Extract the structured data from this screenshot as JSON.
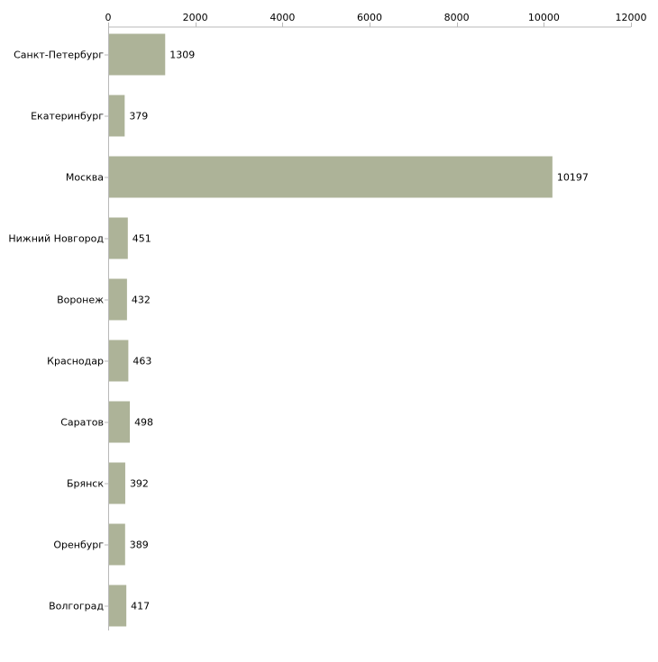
{
  "chart_data": {
    "type": "bar",
    "orientation": "horizontal",
    "title": "",
    "xlabel": "",
    "ylabel": "",
    "xlim": [
      0,
      12000
    ],
    "x_ticks": [
      0,
      2000,
      4000,
      6000,
      8000,
      10000,
      12000
    ],
    "x_tick_labels": [
      "0",
      "2000",
      "4000",
      "6000",
      "8000",
      "10000",
      "12000"
    ],
    "x_axis_position": "top",
    "grid": false,
    "legend": "none",
    "categories": [
      "Санкт-Петербург",
      "Екатеринбург",
      "Москва",
      "Нижний Новгород",
      "Воронеж",
      "Краснодар",
      "Саратов",
      "Брянск",
      "Оренбург",
      "Волгоград"
    ],
    "values": [
      1309,
      379,
      10197,
      451,
      432,
      463,
      498,
      392,
      389,
      417
    ],
    "value_labels": [
      "1309",
      "379",
      "10197",
      "451",
      "432",
      "463",
      "498",
      "392",
      "389",
      "417"
    ],
    "colors": {
      "bar": "#adb398",
      "axis": "#b8b8b8",
      "text": "#000000",
      "background": "#ffffff"
    }
  }
}
